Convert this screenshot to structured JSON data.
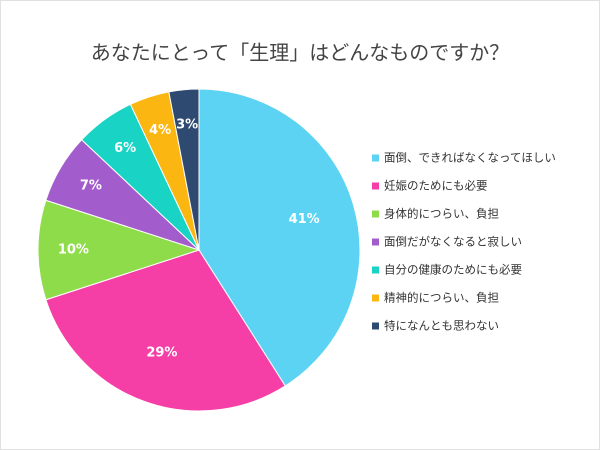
{
  "chart_data": {
    "type": "pie",
    "title": "あなたにとって「生理」はどんなものですか？",
    "categories": [
      "面倒、できればなくなってほしい",
      "妊娠のためにも必要",
      "身体的につらい、負担",
      "面倒だがなくなると寂しい",
      "自分の健康のためにも必要",
      "精神的につらい、負担",
      "特になんとも思わない"
    ],
    "values": [
      41,
      29,
      10,
      7,
      6,
      4,
      3
    ],
    "value_labels": [
      "41%",
      "29%",
      "10%",
      "7%",
      "6%",
      "4%",
      "3%"
    ],
    "colors": [
      "#5dd3f3",
      "#f53fa6",
      "#8fdc4a",
      "#a35ccc",
      "#19d3c5",
      "#fbb611",
      "#2e4a70"
    ],
    "legend": "right"
  }
}
